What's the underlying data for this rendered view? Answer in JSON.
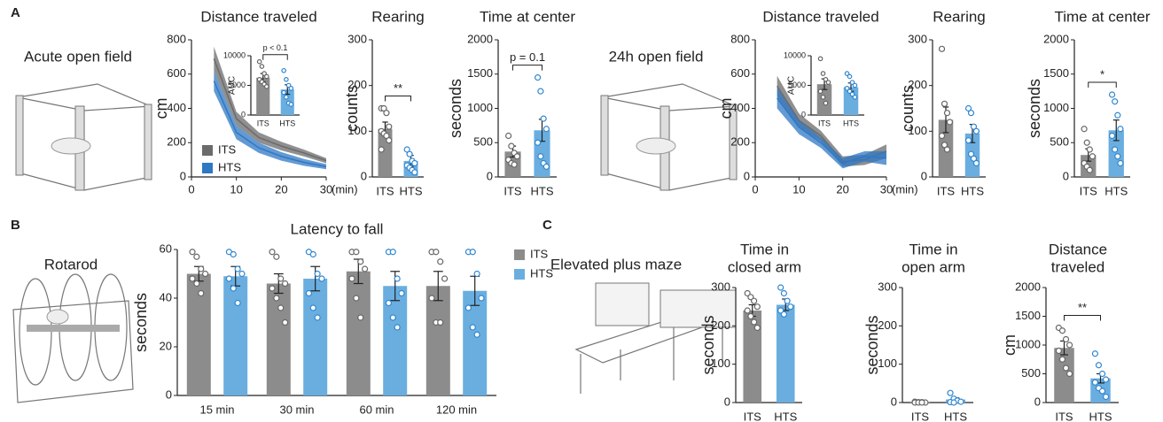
{
  "labels": [
    "A",
    "B",
    "C"
  ],
  "captions": [
    "Acute open field",
    "24h open field",
    "Rotarod",
    "Elevated plus maze"
  ],
  "chart_data": [
    {
      "type": "line",
      "title": "Distance traveled",
      "ylabel": "cm",
      "xlabel": "(min)",
      "x": [
        5,
        10,
        15,
        20,
        25,
        30
      ],
      "xlim": [
        0,
        30
      ],
      "xticks": [
        0,
        10,
        20,
        30
      ],
      "ylim": [
        0,
        800
      ],
      "yticks": [
        0,
        200,
        400,
        600,
        800
      ],
      "legend": "lower left",
      "series": [
        {
          "name": "ITS",
          "color": "#6b6b6b",
          "values": [
            690,
            340,
            230,
            180,
            140,
            95
          ],
          "errors": [
            70,
            40,
            30,
            25,
            20,
            15
          ]
        },
        {
          "name": "HTS",
          "color": "#2f78c4",
          "values": [
            560,
            260,
            170,
            120,
            85,
            60
          ],
          "errors": [
            60,
            40,
            30,
            25,
            20,
            15
          ]
        }
      ]
    },
    {
      "type": "bar",
      "ylabel": "AUC",
      "categories": [
        "ITS",
        "HTS"
      ],
      "colors": [
        "#8c8c8c",
        "#6aaee0"
      ],
      "values": [
        6300,
        4300
      ],
      "errors": [
        700,
        800
      ],
      "points": [
        [
          9000,
          8200,
          7000,
          6500,
          6000,
          5600,
          5200,
          4800
        ],
        [
          7500,
          6000,
          5000,
          4500,
          3800,
          3000,
          2000,
          1800
        ]
      ],
      "ylim": [
        0,
        10000
      ],
      "yticks": [
        0,
        5000,
        10000
      ],
      "annotation": "p < 0.1"
    },
    {
      "type": "bar",
      "title": "Rearing",
      "ylabel": "counts",
      "categories": [
        "ITS",
        "HTS"
      ],
      "colors": [
        "#8c8c8c",
        "#6aaee0"
      ],
      "values": [
        105,
        35
      ],
      "errors": [
        15,
        12
      ],
      "points": [
        [
          150,
          150,
          140,
          110,
          100,
          95,
          90,
          80,
          60
        ],
        [
          60,
          50,
          35,
          30,
          25,
          20,
          15,
          10
        ]
      ],
      "ylim": [
        0,
        300
      ],
      "yticks": [
        0,
        100,
        200,
        300
      ],
      "annotation": "**"
    },
    {
      "type": "bar",
      "title": "Time at center",
      "ylabel": "seconds",
      "categories": [
        "ITS",
        "HTS"
      ],
      "colors": [
        "#8c8c8c",
        "#6aaee0"
      ],
      "values": [
        370,
        680
      ],
      "errors": [
        80,
        160
      ],
      "points": [
        [
          600,
          450,
          350,
          300,
          250,
          200,
          180
        ],
        [
          1450,
          1250,
          850,
          700,
          500,
          300,
          200,
          150
        ]
      ],
      "ylim": [
        0,
        2000
      ],
      "yticks": [
        0,
        500,
        1000,
        1500,
        2000
      ],
      "annotation": "p = 0.1"
    },
    {
      "type": "line",
      "title": "Distance traveled",
      "ylabel": "cm",
      "xlabel": "(min)",
      "x": [
        5,
        10,
        15,
        20,
        25,
        30
      ],
      "xlim": [
        0,
        30
      ],
      "xticks": [
        0,
        10,
        20,
        30
      ],
      "ylim": [
        0,
        800
      ],
      "yticks": [
        0,
        200,
        400,
        600,
        800
      ],
      "series": [
        {
          "name": "ITS",
          "color": "#6b6b6b",
          "values": [
            530,
            330,
            240,
            90,
            100,
            150
          ],
          "errors": [
            60,
            40,
            30,
            30,
            30,
            40
          ]
        },
        {
          "name": "HTS",
          "color": "#2f78c4",
          "values": [
            460,
            290,
            200,
            80,
            120,
            110
          ],
          "errors": [
            60,
            40,
            30,
            30,
            30,
            40
          ]
        }
      ]
    },
    {
      "type": "bar",
      "ylabel": "AUC",
      "categories": [
        "ITS",
        "HTS"
      ],
      "colors": [
        "#8c8c8c",
        "#6aaee0"
      ],
      "values": [
        5200,
        4700
      ],
      "errors": [
        900,
        700
      ],
      "points": [
        [
          9500,
          7000,
          6000,
          5500,
          4000,
          3000,
          2000
        ],
        [
          7000,
          6500,
          5500,
          5000,
          4500,
          4000,
          3500,
          3000
        ]
      ],
      "ylim": [
        0,
        10000
      ],
      "yticks": [
        0,
        5000,
        10000
      ]
    },
    {
      "type": "bar",
      "title": "Rearing",
      "ylabel": "counts",
      "categories": [
        "ITS",
        "HTS"
      ],
      "colors": [
        "#8c8c8c",
        "#6aaee0"
      ],
      "values": [
        125,
        95
      ],
      "errors": [
        28,
        20
      ],
      "points": [
        [
          280,
          160,
          140,
          120,
          90,
          70,
          60
        ],
        [
          150,
          140,
          110,
          100,
          80,
          50,
          40,
          30
        ]
      ],
      "ylim": [
        0,
        300
      ],
      "yticks": [
        0,
        100,
        200,
        300
      ]
    },
    {
      "type": "bar",
      "title": "Time at center",
      "ylabel": "seconds",
      "categories": [
        "ITS",
        "HTS"
      ],
      "colors": [
        "#8c8c8c",
        "#6aaee0"
      ],
      "values": [
        320,
        680
      ],
      "errors": [
        90,
        150
      ],
      "points": [
        [
          700,
          500,
          400,
          300,
          200,
          150,
          100
        ],
        [
          1200,
          1100,
          900,
          700,
          600,
          400,
          300,
          200
        ]
      ],
      "ylim": [
        0,
        2000
      ],
      "yticks": [
        0,
        500,
        1000,
        1500,
        2000
      ],
      "annotation": "*"
    },
    {
      "type": "bar",
      "title": "Latency to fall",
      "ylabel": "seconds",
      "categories": [
        "15 min",
        "30 min",
        "60 min",
        "120 min"
      ],
      "ylim": [
        0,
        60
      ],
      "yticks": [
        0,
        20,
        40,
        60
      ],
      "legend": "right",
      "series": [
        {
          "name": "ITS",
          "color": "#8c8c8c",
          "values": [
            50,
            46,
            51,
            45
          ],
          "errors": [
            3,
            4,
            5,
            6
          ],
          "points": [
            [
              59,
              57,
              52,
              50,
              48,
              46,
              42
            ],
            [
              59,
              57,
              48,
              46,
              44,
              40,
              36,
              30
            ],
            [
              59,
              59,
              55,
              52,
              48,
              40,
              32
            ],
            [
              59,
              59,
              55,
              48,
              40,
              30,
              30
            ]
          ]
        },
        {
          "name": "HTS",
          "color": "#6aaee0",
          "values": [
            49,
            48,
            45,
            43
          ],
          "errors": [
            4,
            5,
            6,
            6
          ],
          "points": [
            [
              59,
              58,
              52,
              50,
              48,
              44,
              38
            ],
            [
              59,
              58,
              50,
              48,
              42,
              36,
              32
            ],
            [
              59,
              59,
              48,
              42,
              38,
              32,
              28
            ],
            [
              59,
              59,
              50,
              40,
              36,
              28,
              25
            ]
          ]
        }
      ]
    },
    {
      "type": "bar",
      "title": [
        "Time in",
        "closed arm"
      ],
      "ylabel": "seconds",
      "categories": [
        "ITS",
        "HTS"
      ],
      "colors": [
        "#8c8c8c",
        "#6aaee0"
      ],
      "values": [
        240,
        255
      ],
      "errors": [
        15,
        15
      ],
      "points": [
        [
          285,
          275,
          265,
          250,
          240,
          225,
          210,
          195
        ],
        [
          300,
          285,
          265,
          250,
          240,
          230
        ]
      ],
      "ylim": [
        0,
        300
      ],
      "yticks": [
        0,
        100,
        200,
        300
      ]
    },
    {
      "type": "bar",
      "title": [
        "Time in",
        "open arm"
      ],
      "ylabel": "seconds",
      "categories": [
        "ITS",
        "HTS"
      ],
      "colors": [
        "#8c8c8c",
        "#6aaee0"
      ],
      "values": [
        1,
        8
      ],
      "errors": [
        0.5,
        4
      ],
      "points": [
        [
          2,
          1,
          1,
          0,
          0,
          0,
          0
        ],
        [
          25,
          10,
          5,
          2,
          1,
          0
        ]
      ],
      "ylim": [
        0,
        300
      ],
      "yticks": [
        0,
        100,
        200,
        300
      ]
    },
    {
      "type": "bar",
      "title": [
        "Distance",
        "traveled"
      ],
      "ylabel": "cm",
      "categories": [
        "ITS",
        "HTS"
      ],
      "colors": [
        "#8c8c8c",
        "#6aaee0"
      ],
      "values": [
        950,
        420
      ],
      "errors": [
        120,
        80
      ],
      "points": [
        [
          1300,
          1250,
          1100,
          1000,
          900,
          750,
          600,
          500
        ],
        [
          850,
          650,
          500,
          400,
          350,
          250,
          200,
          100
        ]
      ],
      "ylim": [
        0,
        2000
      ],
      "yticks": [
        0,
        500,
        1000,
        1500,
        2000
      ],
      "annotation": "**"
    }
  ]
}
